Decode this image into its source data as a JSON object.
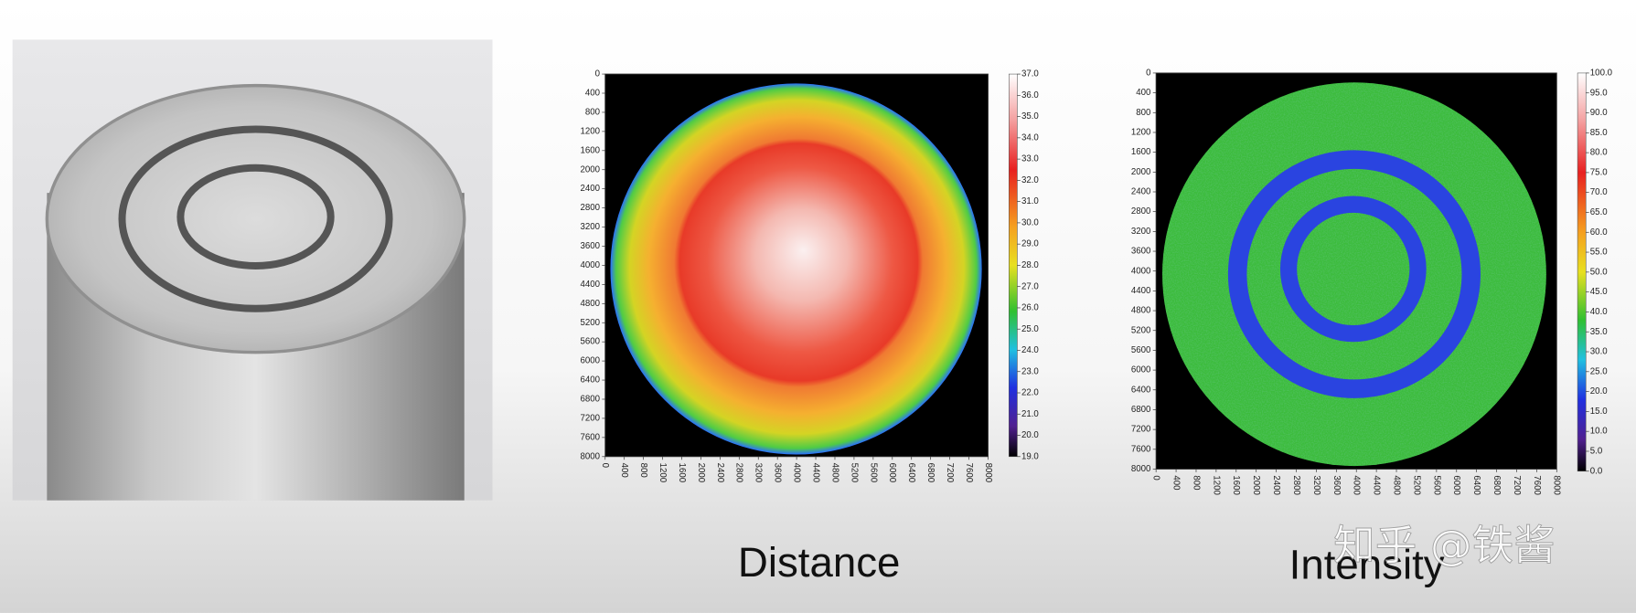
{
  "chart_data": [
    {
      "type": "heatmap",
      "title": "Distance",
      "xlim": [
        0,
        8000
      ],
      "ylim": [
        8000,
        0
      ],
      "xticks": [
        0,
        400,
        800,
        1200,
        1600,
        2000,
        2400,
        2800,
        3200,
        3600,
        4000,
        4400,
        4800,
        5200,
        5600,
        6000,
        6400,
        6800,
        7200,
        7600,
        8000
      ],
      "yticks": [
        0,
        400,
        800,
        1200,
        1600,
        2000,
        2400,
        2800,
        3200,
        3600,
        4000,
        4400,
        4800,
        5200,
        5600,
        6000,
        6400,
        6800,
        7200,
        7600,
        8000
      ],
      "colorbar": {
        "lim": [
          19,
          37
        ],
        "ticks": [
          {
            "value": 19,
            "label": "19.0"
          },
          {
            "value": 20,
            "label": "20.0"
          },
          {
            "value": 21,
            "label": "21.0"
          },
          {
            "value": 22,
            "label": "22.0"
          },
          {
            "value": 23,
            "label": "23.0"
          },
          {
            "value": 24,
            "label": "24.0"
          },
          {
            "value": 25,
            "label": "25.0"
          },
          {
            "value": 26,
            "label": "26.0"
          },
          {
            "value": 27,
            "label": "27.0"
          },
          {
            "value": 28,
            "label": "28.0"
          },
          {
            "value": 29,
            "label": "29.0"
          },
          {
            "value": 30,
            "label": "30.0"
          },
          {
            "value": 31,
            "label": "31.0"
          },
          {
            "value": 32,
            "label": "32.0"
          },
          {
            "value": 33,
            "label": "33.0"
          },
          {
            "value": 34,
            "label": "34.0"
          },
          {
            "value": 35,
            "label": "35.0"
          },
          {
            "value": 36,
            "label": "36.0"
          },
          {
            "value": 37,
            "label": "37.0"
          }
        ]
      }
    },
    {
      "type": "heatmap",
      "title": "Intensity",
      "xlim": [
        0,
        8000
      ],
      "ylim": [
        8000,
        0
      ],
      "xticks": [
        0,
        400,
        800,
        1200,
        1600,
        2000,
        2400,
        2800,
        3200,
        3600,
        4000,
        4400,
        4800,
        5200,
        5600,
        6000,
        6400,
        6800,
        7200,
        7600,
        8000
      ],
      "yticks": [
        0,
        400,
        800,
        1200,
        1600,
        2000,
        2400,
        2800,
        3200,
        3600,
        4000,
        4400,
        4800,
        5200,
        5600,
        6000,
        6400,
        6800,
        7200,
        7600,
        8000
      ],
      "colorbar": {
        "lim": [
          0,
          100
        ],
        "ticks": [
          {
            "value": 0,
            "label": "0.0"
          },
          {
            "value": 5,
            "label": "5.0"
          },
          {
            "value": 10,
            "label": "10.0"
          },
          {
            "value": 15,
            "label": "15.0"
          },
          {
            "value": 20,
            "label": "20.0"
          },
          {
            "value": 25,
            "label": "25.0"
          },
          {
            "value": 30,
            "label": "30.0"
          },
          {
            "value": 35,
            "label": "35.0"
          },
          {
            "value": 40,
            "label": "40.0"
          },
          {
            "value": 45,
            "label": "45.0"
          },
          {
            "value": 50,
            "label": "50.0"
          },
          {
            "value": 55,
            "label": "55.0"
          },
          {
            "value": 60,
            "label": "60.0"
          },
          {
            "value": 65,
            "label": "65.0"
          },
          {
            "value": 70,
            "label": "70.0"
          },
          {
            "value": 75,
            "label": "75.0"
          },
          {
            "value": 80,
            "label": "80.0"
          },
          {
            "value": 85,
            "label": "85.0"
          },
          {
            "value": 90,
            "label": "90.0"
          },
          {
            "value": 95,
            "label": "95.0"
          },
          {
            "value": 100,
            "label": "100.0"
          }
        ]
      }
    }
  ],
  "watermark": "知乎 @铁酱"
}
